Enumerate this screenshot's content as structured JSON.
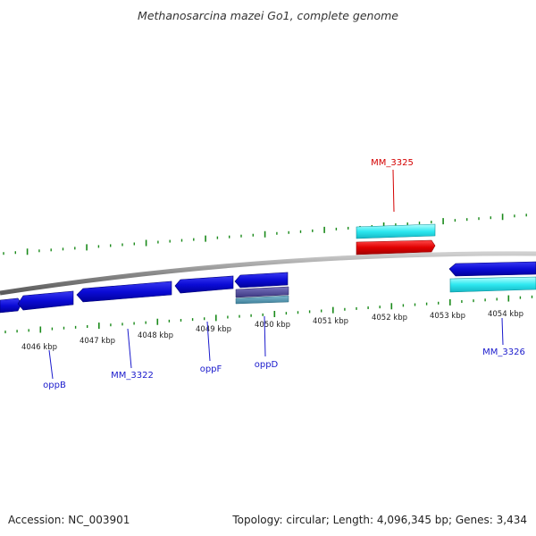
{
  "title": "Methanosarcina mazei Go1, complete genome",
  "scale_labels": [
    "4046 kbp",
    "4047 kbp",
    "4048 kbp",
    "4049 kbp",
    "4050 kbp",
    "4051 kbp",
    "4052 kbp",
    "4053 kbp",
    "4054 kbp"
  ],
  "gene_labels": {
    "mm3325": "MM_3325",
    "oppB": "oppB",
    "mm3322": "MM_3322",
    "oppF": "oppF",
    "oppD": "oppD",
    "mm3326": "MM_3326"
  },
  "footer": {
    "accession": "Accession: NC_003901",
    "summary": "Topology: circular; Length: 4,096,345 bp; Genes: 3,434"
  },
  "colors": {
    "forward_cds": "#0a0ad8",
    "forward_rna": "#2ee6ee",
    "highlight_cds": "#e00000",
    "backbone": "#8a8a8a",
    "tick": "#1a8a1a",
    "label_blue": "#1a1acc",
    "label_red": "#d40000"
  }
}
